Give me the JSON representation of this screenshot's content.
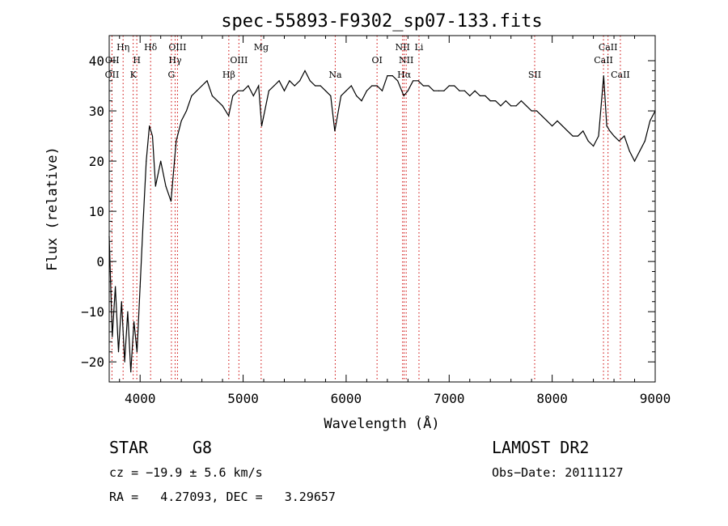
{
  "chart_data": {
    "type": "line",
    "title": "spec-55893-F9302_sp07-133.fits",
    "xlabel": "Wavelength (Å)",
    "ylabel": "Flux (relative)",
    "xlim": [
      3700,
      9000
    ],
    "ylim": [
      -24,
      45
    ],
    "xticks": [
      4000,
      5000,
      6000,
      7000,
      8000,
      9000
    ],
    "yticks": [
      -20,
      -10,
      0,
      10,
      20,
      30,
      40
    ],
    "grid": false,
    "series": [
      {
        "x": [
          3700,
          3730,
          3760,
          3790,
          3820,
          3850,
          3880,
          3910,
          3940,
          3970,
          4000,
          4030,
          4060,
          4090,
          4120,
          4150,
          4200,
          4250,
          4300,
          4350,
          4400,
          4450,
          4500,
          4550,
          4600,
          4650,
          4700,
          4750,
          4800,
          4860,
          4900,
          4950,
          5000,
          5050,
          5100,
          5150,
          5180,
          5250,
          5300,
          5350,
          5400,
          5450,
          5500,
          5550,
          5600,
          5650,
          5700,
          5750,
          5800,
          5850,
          5890,
          5950,
          6000,
          6050,
          6100,
          6150,
          6200,
          6250,
          6300,
          6350,
          6400,
          6450,
          6500,
          6560,
          6600,
          6650,
          6700,
          6750,
          6800,
          6850,
          6900,
          6950,
          7000,
          7050,
          7100,
          7150,
          7200,
          7250,
          7300,
          7350,
          7400,
          7450,
          7500,
          7550,
          7600,
          7650,
          7700,
          7750,
          7800,
          7850,
          7900,
          7950,
          8000,
          8050,
          8100,
          8150,
          8200,
          8250,
          8300,
          8350,
          8400,
          8450,
          8500,
          8530,
          8560,
          8600,
          8650,
          8700,
          8750,
          8800,
          8850,
          8900,
          8950,
          9000
        ],
        "values": [
          5,
          -15,
          -5,
          -18,
          -8,
          -20,
          -10,
          -22,
          -12,
          -18,
          -5,
          8,
          20,
          27,
          25,
          15,
          20,
          15,
          12,
          24,
          28,
          30,
          33,
          34,
          35,
          36,
          33,
          32,
          31,
          29,
          33,
          34,
          34,
          35,
          33,
          35,
          27,
          34,
          35,
          36,
          34,
          36,
          35,
          36,
          38,
          36,
          35,
          35,
          34,
          33,
          26,
          33,
          34,
          35,
          33,
          32,
          34,
          35,
          35,
          34,
          37,
          37,
          36,
          33,
          34,
          36,
          36,
          35,
          35,
          34,
          34,
          34,
          35,
          35,
          34,
          34,
          33,
          34,
          33,
          33,
          32,
          32,
          31,
          32,
          31,
          31,
          32,
          31,
          30,
          30,
          29,
          28,
          27,
          28,
          27,
          26,
          25,
          25,
          26,
          24,
          23,
          25,
          37,
          27,
          26,
          25,
          24,
          25,
          22,
          20,
          22,
          24,
          28,
          30
        ]
      }
    ],
    "annotations": [
      {
        "label": "OII",
        "x": 3727,
        "row": 3
      },
      {
        "label": "OII",
        "x": 3729,
        "row": 2
      },
      {
        "label": "Hη",
        "x": 3835,
        "row": 1
      },
      {
        "label": "H",
        "x": 3968,
        "row": 2
      },
      {
        "label": "K",
        "x": 3933,
        "row": 3
      },
      {
        "label": "Hδ",
        "x": 4102,
        "row": 1
      },
      {
        "label": "OIII",
        "x": 4363,
        "row": 1
      },
      {
        "label": "Hγ",
        "x": 4340,
        "row": 2
      },
      {
        "label": "G",
        "x": 4304,
        "row": 3
      },
      {
        "label": "Hβ",
        "x": 4861,
        "row": 3
      },
      {
        "label": "OIII",
        "x": 4959,
        "row": 2
      },
      {
        "label": "Mg",
        "x": 5175,
        "row": 1
      },
      {
        "label": "Na",
        "x": 5894,
        "row": 3
      },
      {
        "label": "OI",
        "x": 6300,
        "row": 2
      },
      {
        "label": "NII",
        "x": 6548,
        "row": 1
      },
      {
        "label": "NII",
        "x": 6583,
        "row": 2
      },
      {
        "label": "Hα",
        "x": 6563,
        "row": 3
      },
      {
        "label": "Li",
        "x": 6707,
        "row": 1
      },
      {
        "label": "SII",
        "x": 7830,
        "row": 3
      },
      {
        "label": "CaII",
        "x": 8542,
        "row": 1
      },
      {
        "label": "CaII",
        "x": 8498,
        "row": 2
      },
      {
        "label": "CaII",
        "x": 8662,
        "row": 3
      }
    ],
    "lines": [
      3727,
      3835,
      3933,
      3968,
      4102,
      4304,
      4340,
      4363,
      4861,
      4959,
      5175,
      5894,
      6300,
      6548,
      6563,
      6583,
      6707,
      7830,
      8498,
      8542,
      8662
    ],
    "line_color": "#cc0000"
  },
  "info": {
    "object_class": "STAR",
    "subclass": "G8",
    "survey": "LAMOST DR2",
    "cz": "cz = −19.9 ± 5.6 km/s",
    "obs_date": "Obs−Date: 20111127",
    "coords": "RA =   4.27093, DEC =   3.29657"
  }
}
